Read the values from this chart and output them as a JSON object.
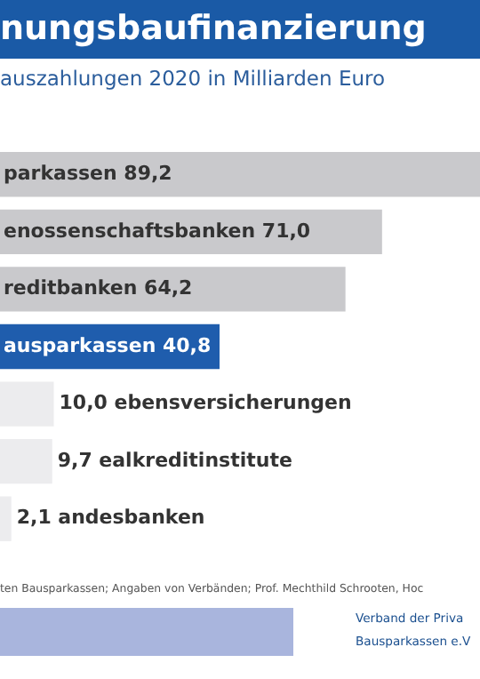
{
  "chart_data": {
    "type": "bar",
    "orientation": "horizontal",
    "title": "nungsbaufinanzierung",
    "subtitle": "auszahlungen 2020 in Milliarden Euro",
    "categories": [
      "parkassen",
      "enossenschaftsbanken",
      "reditbanken",
      "ausparkassen",
      "ebensversicherungen",
      "ealkreditinstitute",
      "andesbanken"
    ],
    "values": [
      89.2,
      71.0,
      64.2,
      40.8,
      10.0,
      9.7,
      2.1
    ],
    "value_labels": [
      "89,2",
      "71,0",
      "64,2",
      "40,8",
      "10,0",
      "9,7",
      "2,1"
    ],
    "colors": [
      "#c9c9cc",
      "#c9c9cc",
      "#c9c9cc",
      "#1f5dad",
      "#ececee",
      "#ececee",
      "#ececee"
    ],
    "annotations": [
      "ten Bausparkassen; Angaben von Verbänden; Prof. Mechthild Schrooten, Hoc",
      "Verband der Priva",
      "Bausparkassen e.V"
    ],
    "legend": false
  }
}
